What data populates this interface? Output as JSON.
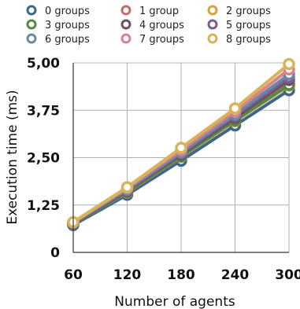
{
  "chart_data": {
    "type": "line",
    "title": "",
    "xlabel": "Number of agents",
    "ylabel": "Execution time (ms)",
    "x": [
      60,
      120,
      180,
      240,
      300
    ],
    "x_tick_labels": [
      "60",
      "120",
      "180",
      "240",
      "300"
    ],
    "ylim": [
      0,
      5
    ],
    "y_ticks": [
      0,
      1.25,
      2.5,
      3.75,
      5
    ],
    "y_tick_labels": [
      "0",
      "1,25",
      "2,50",
      "3,75",
      "5,00"
    ],
    "grid": true,
    "legend_position": "top",
    "series": [
      {
        "name": "0 groups",
        "color": "#3f6688",
        "values": [
          0.72,
          1.52,
          2.42,
          3.35,
          4.28
        ]
      },
      {
        "name": "1 group",
        "color": "#c8696f",
        "values": [
          0.76,
          1.6,
          2.55,
          3.5,
          4.45
        ]
      },
      {
        "name": "2 groups",
        "color": "#d6a23a",
        "values": [
          0.75,
          1.58,
          2.52,
          3.46,
          4.4
        ]
      },
      {
        "name": "3 groups",
        "color": "#55884a",
        "values": [
          0.75,
          1.59,
          2.53,
          3.48,
          4.42
        ]
      },
      {
        "name": "4 groups",
        "color": "#6b5159",
        "values": [
          0.76,
          1.62,
          2.58,
          3.55,
          4.55
        ]
      },
      {
        "name": "5 groups",
        "color": "#7b5d91",
        "values": [
          0.77,
          1.64,
          2.61,
          3.6,
          4.62
        ]
      },
      {
        "name": "6 groups",
        "color": "#6a88a6",
        "values": [
          0.78,
          1.66,
          2.64,
          3.64,
          4.7
        ]
      },
      {
        "name": "7 groups",
        "color": "#d9828c",
        "values": [
          0.79,
          1.7,
          2.7,
          3.72,
          4.83
        ]
      },
      {
        "name": "8 groups",
        "color": "#d8b35a",
        "values": [
          0.8,
          1.72,
          2.76,
          3.8,
          4.97
        ]
      }
    ]
  }
}
